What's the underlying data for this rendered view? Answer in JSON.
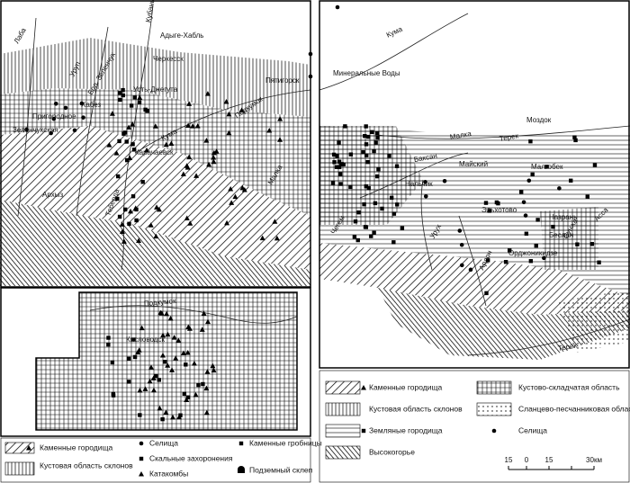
{
  "left_map": {
    "labels": [
      "Лаба",
      "Уруп",
      "Бол. Зеленчук",
      "Кубань",
      "Адыге-Хабль",
      "Черкесск",
      "Хабез",
      "Усть-Джегута",
      "Пригородное",
      "Зеленчукская",
      "Карачаевск",
      "Архыз",
      "Кума",
      "Пятигорск",
      "Подкумок",
      "Теберда",
      "Малка"
    ]
  },
  "inset": {
    "labels": [
      "Подкумок",
      "Кисловодск"
    ]
  },
  "right_map": {
    "labels": [
      "Кума",
      "Минеральные Воды",
      "Моздок",
      "Терек",
      "Малка",
      "Баксан",
      "Майский",
      "Малгобек",
      "Нальчик",
      "Чегем",
      "Эльхотово",
      "Урух",
      "Назрань",
      "Беслан",
      "Орджоникидзе",
      "Ардон",
      "Сунжа",
      "Асса",
      "Терек"
    ]
  },
  "left_legend": {
    "items": [
      "Каменные городища",
      "Селища",
      "Каменные гробницы",
      "Скальные захоронения",
      "Кустовая область склонов",
      "Катакомбы",
      "Подземный склеп"
    ]
  },
  "right_legend": {
    "items": [
      "Каменные городища",
      "Кустовая область склонов",
      "Земляные городища",
      "Высокогорье",
      "Кустово-складчатая область",
      "Сланцево-песчанниковая область",
      "Селища"
    ]
  },
  "scale": {
    "labels": [
      "15",
      "0",
      "15",
      "30км"
    ]
  }
}
